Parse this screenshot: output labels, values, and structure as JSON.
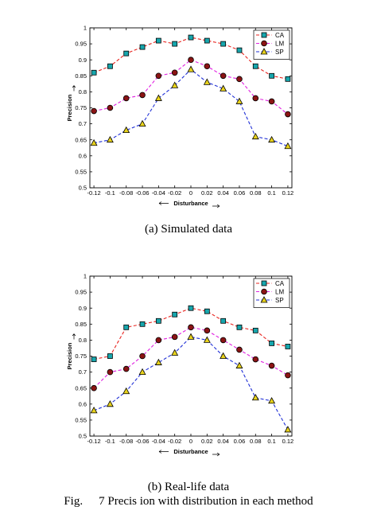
{
  "chart_data": [
    {
      "type": "line",
      "caption": "(a) Simulated data",
      "xlabel": "Disturbance",
      "ylabel": "Precision",
      "x": [
        -0.12,
        -0.1,
        -0.08,
        -0.06,
        -0.04,
        -0.02,
        0,
        0.02,
        0.04,
        0.06,
        0.08,
        0.1,
        0.12
      ],
      "x_tick_labels": [
        "-0.12",
        "-0.1",
        "-0.08",
        "-0.06",
        "-0.04",
        "-0.02",
        "0",
        "0.02",
        "0.04",
        "0.06",
        "0.08",
        "0.1",
        "0.12"
      ],
      "xlim": [
        -0.125,
        0.125
      ],
      "ylim": [
        0.5,
        1.0
      ],
      "y_ticks": [
        0.5,
        0.55,
        0.6,
        0.65,
        0.7,
        0.75,
        0.8,
        0.85,
        0.9,
        0.95,
        1
      ],
      "y_tick_labels": [
        "0.5",
        "0.55",
        "0.6",
        "0.65",
        "0.7",
        "0.75",
        "0.8",
        "0.85",
        "0.9",
        "0.95",
        "1"
      ],
      "legend_position": "top-right",
      "grid": false,
      "series": [
        {
          "name": "CA",
          "color": "#e8231e",
          "marker": "square",
          "marker_fill": "#17a6ad",
          "values": [
            0.86,
            0.88,
            0.92,
            0.94,
            0.96,
            0.95,
            0.97,
            0.96,
            0.95,
            0.93,
            0.88,
            0.85,
            0.84
          ]
        },
        {
          "name": "LM",
          "color": "#e020e0",
          "marker": "circle",
          "marker_fill": "#8b1414",
          "values": [
            0.74,
            0.75,
            0.78,
            0.79,
            0.85,
            0.86,
            0.9,
            0.88,
            0.85,
            0.84,
            0.78,
            0.77,
            0.73
          ]
        },
        {
          "name": "SP",
          "color": "#1f2fd6",
          "marker": "triangle",
          "marker_fill": "#e8d21c",
          "values": [
            0.64,
            0.65,
            0.68,
            0.7,
            0.78,
            0.82,
            0.87,
            0.83,
            0.81,
            0.77,
            0.66,
            0.65,
            0.63
          ]
        }
      ]
    },
    {
      "type": "line",
      "caption": "(b) Real-life data",
      "xlabel": "Disturbance",
      "ylabel": "Precision",
      "x": [
        -0.12,
        -0.1,
        -0.08,
        -0.06,
        -0.04,
        -0.02,
        0,
        0.02,
        0.04,
        0.06,
        0.08,
        0.1,
        0.12
      ],
      "x_tick_labels": [
        "-0.12",
        "-0.1",
        "-0.08",
        "-0.06",
        "-0.04",
        "-0.02",
        "0",
        "0.02",
        "0.04",
        "0.06",
        "0.08",
        "0.1",
        "0.12"
      ],
      "xlim": [
        -0.125,
        0.125
      ],
      "ylim": [
        0.5,
        1.0
      ],
      "y_ticks": [
        0.5,
        0.55,
        0.6,
        0.65,
        0.7,
        0.75,
        0.8,
        0.85,
        0.9,
        0.95,
        1
      ],
      "y_tick_labels": [
        "0.5",
        "0.55",
        "0.6",
        "0.65",
        "0.7",
        "0.75",
        "0.8",
        "0.85",
        "0.9",
        "0.95",
        "1"
      ],
      "legend_position": "top-right",
      "grid": false,
      "series": [
        {
          "name": "CA",
          "color": "#e8231e",
          "marker": "square",
          "marker_fill": "#17a6ad",
          "values": [
            0.74,
            0.75,
            0.84,
            0.85,
            0.86,
            0.88,
            0.9,
            0.89,
            0.86,
            0.84,
            0.83,
            0.79,
            0.78
          ]
        },
        {
          "name": "LM",
          "color": "#e020e0",
          "marker": "circle",
          "marker_fill": "#8b1414",
          "values": [
            0.65,
            0.7,
            0.71,
            0.75,
            0.8,
            0.81,
            0.84,
            0.83,
            0.8,
            0.77,
            0.74,
            0.72,
            0.69
          ]
        },
        {
          "name": "SP",
          "color": "#1f2fd6",
          "marker": "triangle",
          "marker_fill": "#e8d21c",
          "values": [
            0.58,
            0.6,
            0.64,
            0.7,
            0.73,
            0.76,
            0.81,
            0.8,
            0.75,
            0.72,
            0.62,
            0.61,
            0.52
          ]
        }
      ]
    }
  ],
  "figure_caption": {
    "label": "Fig.",
    "text": "7 Precis ion with distribution in each method"
  }
}
